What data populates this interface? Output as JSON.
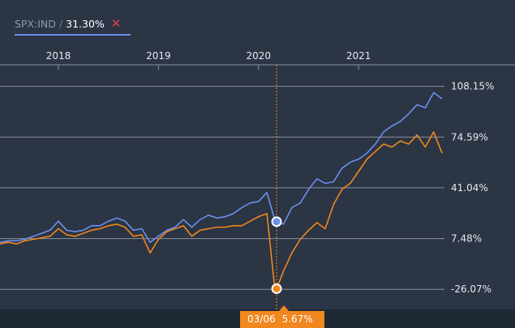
{
  "legend": {
    "symbol": "SPX:IND",
    "separator": "/",
    "value": "31.30%",
    "close_glyph": "✕",
    "close_icon": "close-icon"
  },
  "crosshair": {
    "date_label": "03/06",
    "value_label": "5.67%"
  },
  "colors": {
    "background": "#2b3544",
    "bottom_band": "#1f2835",
    "grid": "#8a929e",
    "axis_text": "#e6e9ee",
    "series_blue": "#6c8fef",
    "series_orange": "#f0871f",
    "close": "#e0424a"
  },
  "chart_data": {
    "type": "line",
    "x_ticks": [
      "2018",
      "2019",
      "2020",
      "2021"
    ],
    "y_ticks": [
      "108.15%",
      "74.59%",
      "41.04%",
      "7.48%",
      "-26.07%"
    ],
    "y_tick_values": [
      108.15,
      74.59,
      41.04,
      7.48,
      -26.07
    ],
    "ylim": [
      -34,
      116
    ],
    "xlim": [
      "2017-06",
      "2021-11"
    ],
    "grid": true,
    "crosshair_x": "2020-03-06",
    "series": [
      {
        "name": "SPX:IND",
        "color": "#6c8fef",
        "x": [
          "2017-06",
          "2017-07",
          "2017-08",
          "2017-09",
          "2017-10",
          "2017-11",
          "2017-12",
          "2018-01",
          "2018-02",
          "2018-03",
          "2018-04",
          "2018-05",
          "2018-06",
          "2018-07",
          "2018-08",
          "2018-09",
          "2018-10",
          "2018-11",
          "2018-12",
          "2019-01",
          "2019-02",
          "2019-03",
          "2019-04",
          "2019-05",
          "2019-06",
          "2019-07",
          "2019-08",
          "2019-09",
          "2019-10",
          "2019-11",
          "2019-12",
          "2020-01",
          "2020-02",
          "2020-03",
          "2020-04",
          "2020-05",
          "2020-06",
          "2020-07",
          "2020-08",
          "2020-09",
          "2020-10",
          "2020-11",
          "2020-12",
          "2021-01",
          "2021-02",
          "2021-03",
          "2021-04",
          "2021-05",
          "2021-06",
          "2021-07",
          "2021-08",
          "2021-09",
          "2021-10",
          "2021-11"
        ],
        "values": [
          5,
          6,
          6,
          7,
          9,
          11,
          13,
          19,
          13,
          12,
          13,
          16,
          16,
          19,
          21,
          19,
          13,
          14,
          5,
          9,
          13,
          15,
          20,
          15,
          20,
          23,
          21,
          22,
          24,
          28,
          31,
          32,
          38,
          19,
          17,
          28,
          31,
          40,
          47,
          44,
          45,
          54,
          58,
          60,
          64,
          70,
          78,
          82,
          85,
          90,
          96,
          94,
          104,
          100
        ]
      },
      {
        "name": "",
        "color": "#f0871f",
        "x": [
          "2017-06",
          "2017-07",
          "2017-08",
          "2017-09",
          "2017-10",
          "2017-11",
          "2017-12",
          "2018-01",
          "2018-02",
          "2018-03",
          "2018-04",
          "2018-05",
          "2018-06",
          "2018-07",
          "2018-08",
          "2018-09",
          "2018-10",
          "2018-11",
          "2018-12",
          "2019-01",
          "2019-02",
          "2019-03",
          "2019-04",
          "2019-05",
          "2019-06",
          "2019-07",
          "2019-08",
          "2019-09",
          "2019-10",
          "2019-11",
          "2019-12",
          "2020-01",
          "2020-02",
          "2020-03",
          "2020-04",
          "2020-05",
          "2020-06",
          "2020-07",
          "2020-08",
          "2020-09",
          "2020-10",
          "2020-11",
          "2020-12",
          "2021-01",
          "2021-02",
          "2021-03",
          "2021-04",
          "2021-05",
          "2021-06",
          "2021-07",
          "2021-08",
          "2021-09",
          "2021-10",
          "2021-11"
        ],
        "values": [
          4,
          5,
          4,
          6,
          7,
          8,
          9,
          14,
          10,
          9,
          11,
          13,
          14,
          16,
          17,
          15,
          9,
          10,
          -2,
          7,
          12,
          14,
          16,
          9,
          13,
          14,
          15,
          15,
          16,
          16,
          19,
          22,
          24,
          -28,
          -14,
          -2,
          7,
          13,
          18,
          14,
          30,
          40,
          44,
          52,
          60,
          65,
          70,
          68,
          72,
          70,
          76,
          68,
          78,
          64
        ]
      }
    ]
  }
}
